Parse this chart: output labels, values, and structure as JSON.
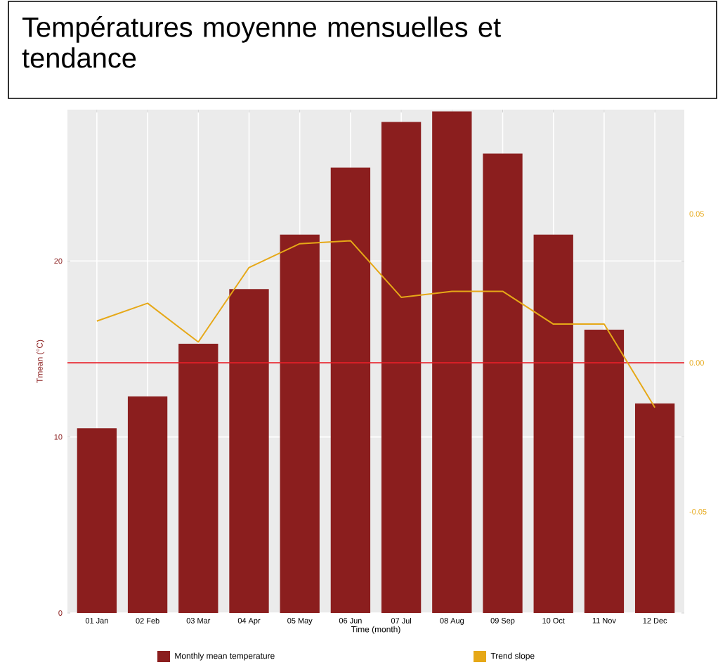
{
  "chart_data": {
    "type": "bar",
    "title": "Températures moyenne mensuelles et tendance",
    "xlabel": "Time (month)",
    "ylabel": "Tmean (°C)",
    "categories": [
      "01 Jan",
      "02 Feb",
      "03 Mar",
      "04 Apr",
      "05 May",
      "06 Jun",
      "07 Jul",
      "08 Aug",
      "09 Sep",
      "10 Oct",
      "11 Nov",
      "12 Dec"
    ],
    "series": [
      {
        "name": "Monthly mean temperature",
        "color": "#8b1e1e",
        "values": [
          10.5,
          12.3,
          15.3,
          18.4,
          21.5,
          25.3,
          27.9,
          28.5,
          26.1,
          21.5,
          16.1,
          11.9
        ]
      },
      {
        "name": "Trend slope",
        "type": "line",
        "axis": "y2",
        "color": "#e6a817",
        "values": [
          0.014,
          0.02,
          0.007,
          0.032,
          0.04,
          0.041,
          0.022,
          0.024,
          0.024,
          0.013,
          0.013,
          -0.015
        ]
      }
    ],
    "ylim": [
      0,
      28.6
    ],
    "yticks": [
      0,
      10,
      20
    ],
    "y2lim": [
      -0.084,
      0.085
    ],
    "y2ticks": [
      -0.05,
      {
        "value": 0,
        "label": "0.00"
      },
      0.05
    ],
    "ref_lines": [
      {
        "axis": "y2",
        "value": 0,
        "color": "#e8202a"
      }
    ],
    "grid": true,
    "legend": "bottom",
    "line_style": "solid"
  }
}
